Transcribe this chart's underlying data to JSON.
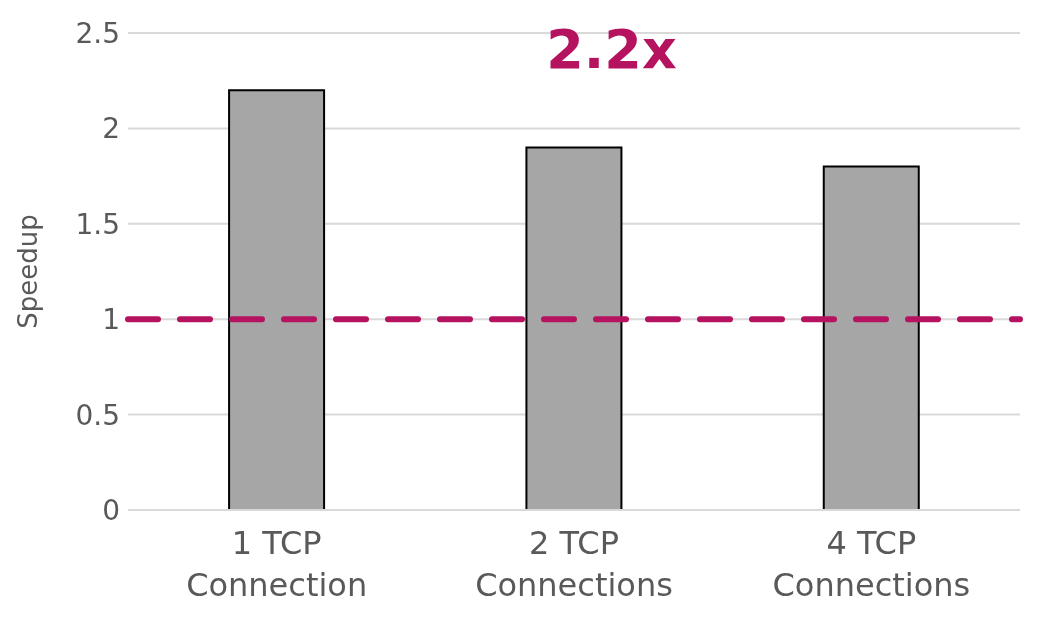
{
  "chart_data": {
    "type": "bar",
    "ylabel": "Speedup",
    "categories": [
      "1 TCP Connection",
      "2 TCP Connections",
      "4 TCP Connections"
    ],
    "values": [
      2.2,
      1.9,
      1.8
    ],
    "color": "#a6a6a6",
    "ylim": [
      0,
      2.5
    ],
    "yticks": [
      0,
      0.5,
      1,
      1.5,
      2,
      2.5
    ],
    "grid": "y",
    "ref_lines": [
      {
        "axis": "y",
        "value": 1,
        "color": "#b5135f",
        "line_style": "dashed"
      }
    ],
    "annotations": [
      "2.2x"
    ]
  }
}
